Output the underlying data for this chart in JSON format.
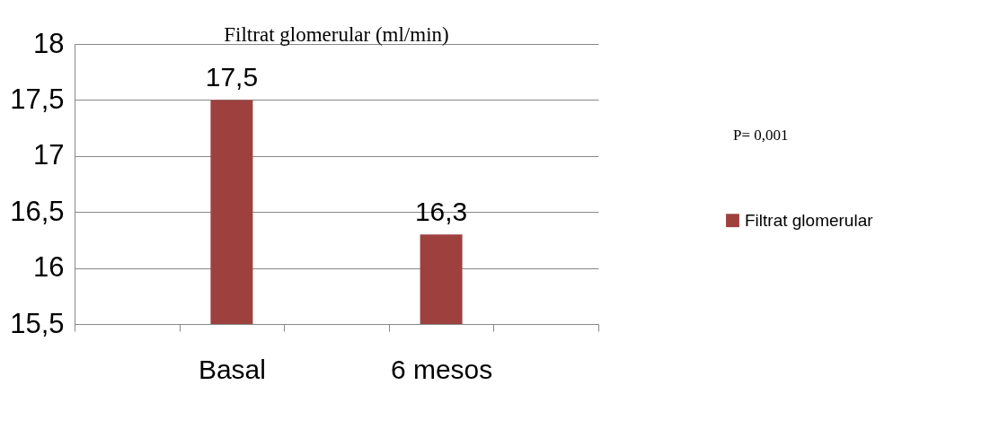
{
  "chart_data": {
    "type": "bar",
    "title": "Filtrat glomerular (ml/min)",
    "categories": [
      null,
      "Basal",
      null,
      "6 mesos",
      null
    ],
    "series": [
      {
        "name": "Filtrat glomerular",
        "color": "#9e413e",
        "values": [
          null,
          17.5,
          null,
          16.3,
          null
        ]
      }
    ],
    "value_labels": [
      null,
      "17,5",
      null,
      "16,3",
      null
    ],
    "ylim": [
      15.5,
      18
    ],
    "yticks": [
      {
        "value": 15.5,
        "label": "15,5"
      },
      {
        "value": 16,
        "label": "16"
      },
      {
        "value": 16.5,
        "label": "16,5"
      },
      {
        "value": 17,
        "label": "17"
      },
      {
        "value": 17.5,
        "label": "17,5"
      },
      {
        "value": 18,
        "label": "18"
      }
    ],
    "grid": "y",
    "legend": "right",
    "annotations": [
      "P= 0,001"
    ]
  }
}
